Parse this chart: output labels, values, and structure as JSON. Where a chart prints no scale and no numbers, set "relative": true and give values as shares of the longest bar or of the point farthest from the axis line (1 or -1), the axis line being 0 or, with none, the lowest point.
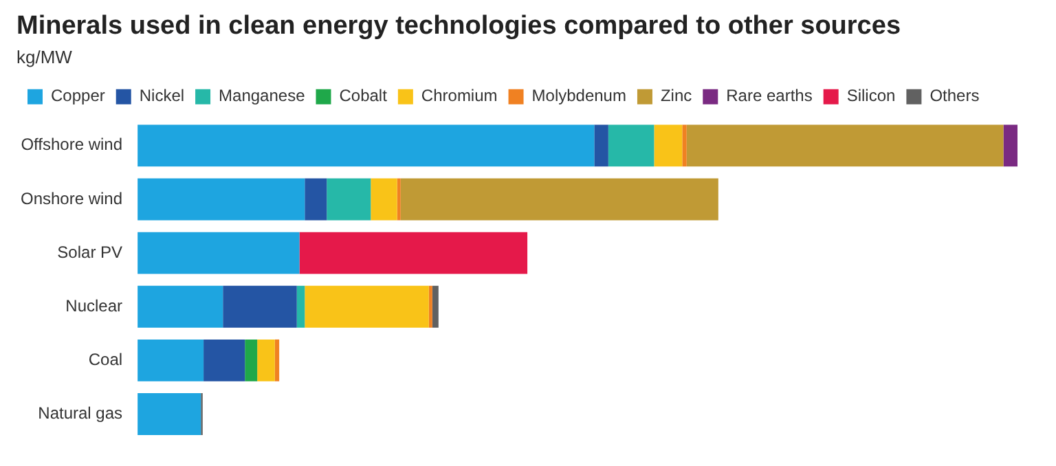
{
  "chart_data": {
    "type": "bar",
    "title": "Minerals used in clean energy technologies compared to other sources",
    "subtitle": "kg/MW",
    "orientation": "horizontal",
    "stacked": true,
    "relative": true,
    "legend": "top left",
    "categories": [
      "Offshore wind",
      "Onshore wind",
      "Solar PV",
      "Nuclear",
      "Coal",
      "Natural gas"
    ],
    "series": [
      {
        "name": "Copper",
        "color": "#1ea5e0",
        "values": [
          0.519,
          0.19,
          0.184,
          0.097,
          0.075,
          0.072
        ]
      },
      {
        "name": "Nickel",
        "color": "#2455a4",
        "values": [
          0.016,
          0.025,
          null,
          0.084,
          0.047,
          null
        ]
      },
      {
        "name": "Manganese",
        "color": "#26b8a8",
        "values": [
          0.052,
          0.05,
          null,
          0.009,
          null,
          null
        ]
      },
      {
        "name": "Cobalt",
        "color": "#1fa84a",
        "values": [
          null,
          null,
          null,
          null,
          0.014,
          null
        ]
      },
      {
        "name": "Chromium",
        "color": "#f9c318",
        "values": [
          0.032,
          0.03,
          null,
          0.141,
          0.02,
          null
        ]
      },
      {
        "name": "Molybdenum",
        "color": "#f08122",
        "values": [
          0.005,
          0.004,
          null,
          0.004,
          0.005,
          null
        ]
      },
      {
        "name": "Zinc",
        "color": "#c09a35",
        "values": [
          0.36,
          0.361,
          null,
          null,
          null,
          null
        ]
      },
      {
        "name": "Rare earths",
        "color": "#7a2a82",
        "values": [
          0.016,
          null,
          null,
          null,
          null,
          null
        ]
      },
      {
        "name": "Silicon",
        "color": "#e5194a",
        "values": [
          null,
          null,
          0.259,
          null,
          null,
          null
        ]
      },
      {
        "name": "Others",
        "color": "#616161",
        "values": [
          null,
          null,
          null,
          0.007,
          null,
          0.002
        ]
      }
    ]
  }
}
